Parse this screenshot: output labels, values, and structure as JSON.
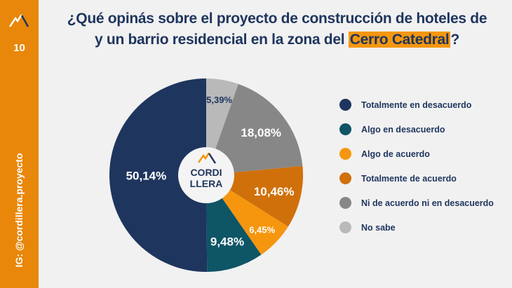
{
  "sidebar": {
    "page_number": "10",
    "instagram": "IG: @cordillera.proyecto"
  },
  "title": {
    "line1": "¿Qué opinás sobre el proyecto de construcción de hoteles de",
    "line2_pre": "y un barrio residencial en la zona del ",
    "highlight": "Cerro Catedral",
    "line2_post": "?"
  },
  "logo": {
    "line1": "CORDI",
    "line2": "LLERA"
  },
  "chart_data": {
    "type": "pie",
    "title": "¿Qué opinás sobre el proyecto de construcción de hoteles de y un barrio residencial en la zona del Cerro Catedral?",
    "start": "top",
    "direction": "clockwise",
    "slices": [
      {
        "label": "No sabe",
        "value": 5.39,
        "text": "5,39%",
        "color": "#b9b9b9",
        "labelColor": "#1e355e"
      },
      {
        "label": "Ni de acuerdo ni en desacuerdo",
        "value": 18.08,
        "text": "18,08%",
        "color": "#878787",
        "labelColor": "#ffffff"
      },
      {
        "label": "Totalmente de acuerdo",
        "value": 10.46,
        "text": "10,46%",
        "color": "#d0700a",
        "labelColor": "#ffffff"
      },
      {
        "label": "Algo de acuerdo",
        "value": 6.45,
        "text": "6,45%",
        "color": "#f5960e",
        "labelColor": "#ffffff"
      },
      {
        "label": "Algo en desacuerdo",
        "value": 9.48,
        "text": "9,48%",
        "color": "#0e5566",
        "labelColor": "#ffffff"
      },
      {
        "label": "Totalmente en desacuerdo",
        "value": 50.14,
        "text": "50,14%",
        "color": "#1e355e",
        "labelColor": "#ffffff"
      }
    ],
    "legend": [
      "Totalmente en desacuerdo",
      "Algo en desacuerdo",
      "Algo de acuerdo",
      "Totalmente de acuerdo",
      "Ni de acuerdo ni en desacuerdo",
      "No sabe"
    ],
    "legend_colors": [
      "#1e355e",
      "#0e5566",
      "#f5960e",
      "#d0700a",
      "#878787",
      "#b9b9b9"
    ],
    "legend_placement": "right"
  }
}
